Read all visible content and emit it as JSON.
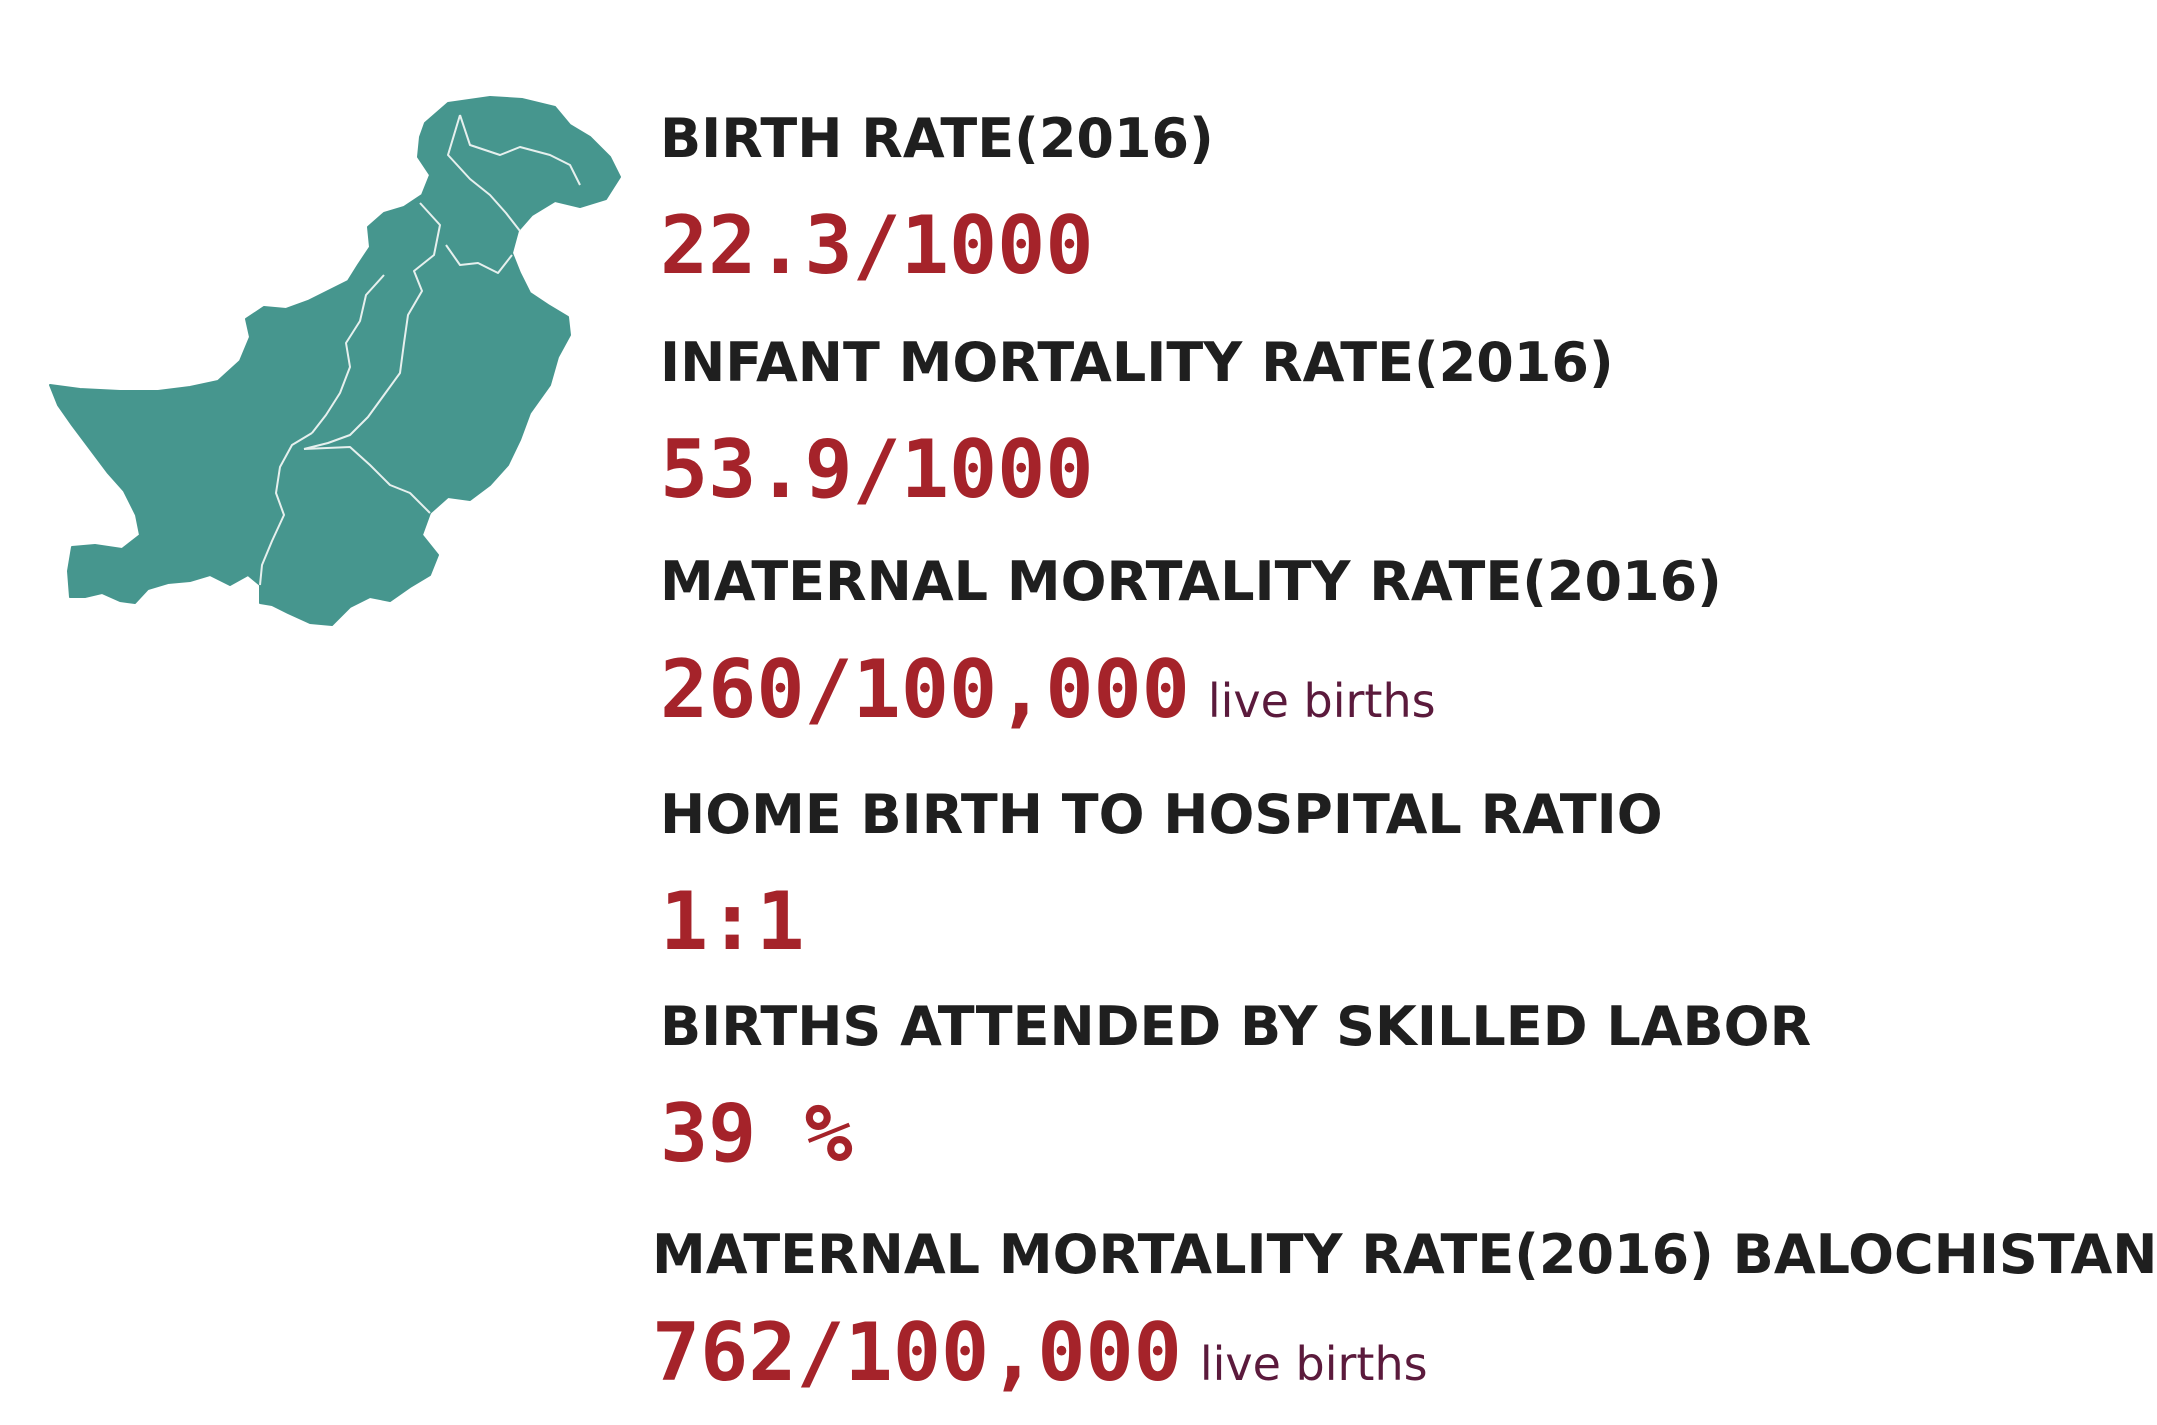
{
  "map": {
    "icon": "pakistan-map-icon",
    "fill_color": "#46968e",
    "border_color": "#e6f0ee"
  },
  "stats": [
    {
      "label": "BIRTH RATE(2016)",
      "value": "22.3/1000",
      "unit": ""
    },
    {
      "label": "INFANT MORTALITY RATE(2016)",
      "value": "53.9/1000",
      "unit": ""
    },
    {
      "label": "MATERNAL MORTALITY RATE(2016)",
      "value": "260/100,000",
      "unit": "live births"
    },
    {
      "label": "HOME BIRTH TO HOSPITAL RATIO",
      "value": "1:1",
      "unit": ""
    },
    {
      "label": "BIRTHS ATTENDED BY SKILLED LABOR",
      "value": "39 %",
      "unit": ""
    },
    {
      "label": "MATERNAL MORTALITY RATE(2016) BALOCHISTAN",
      "value": "762/100,000",
      "unit": "live births"
    }
  ],
  "colors": {
    "label": "#1f1f1f",
    "value": "#a5232a",
    "unit": "#5b1a3c"
  }
}
